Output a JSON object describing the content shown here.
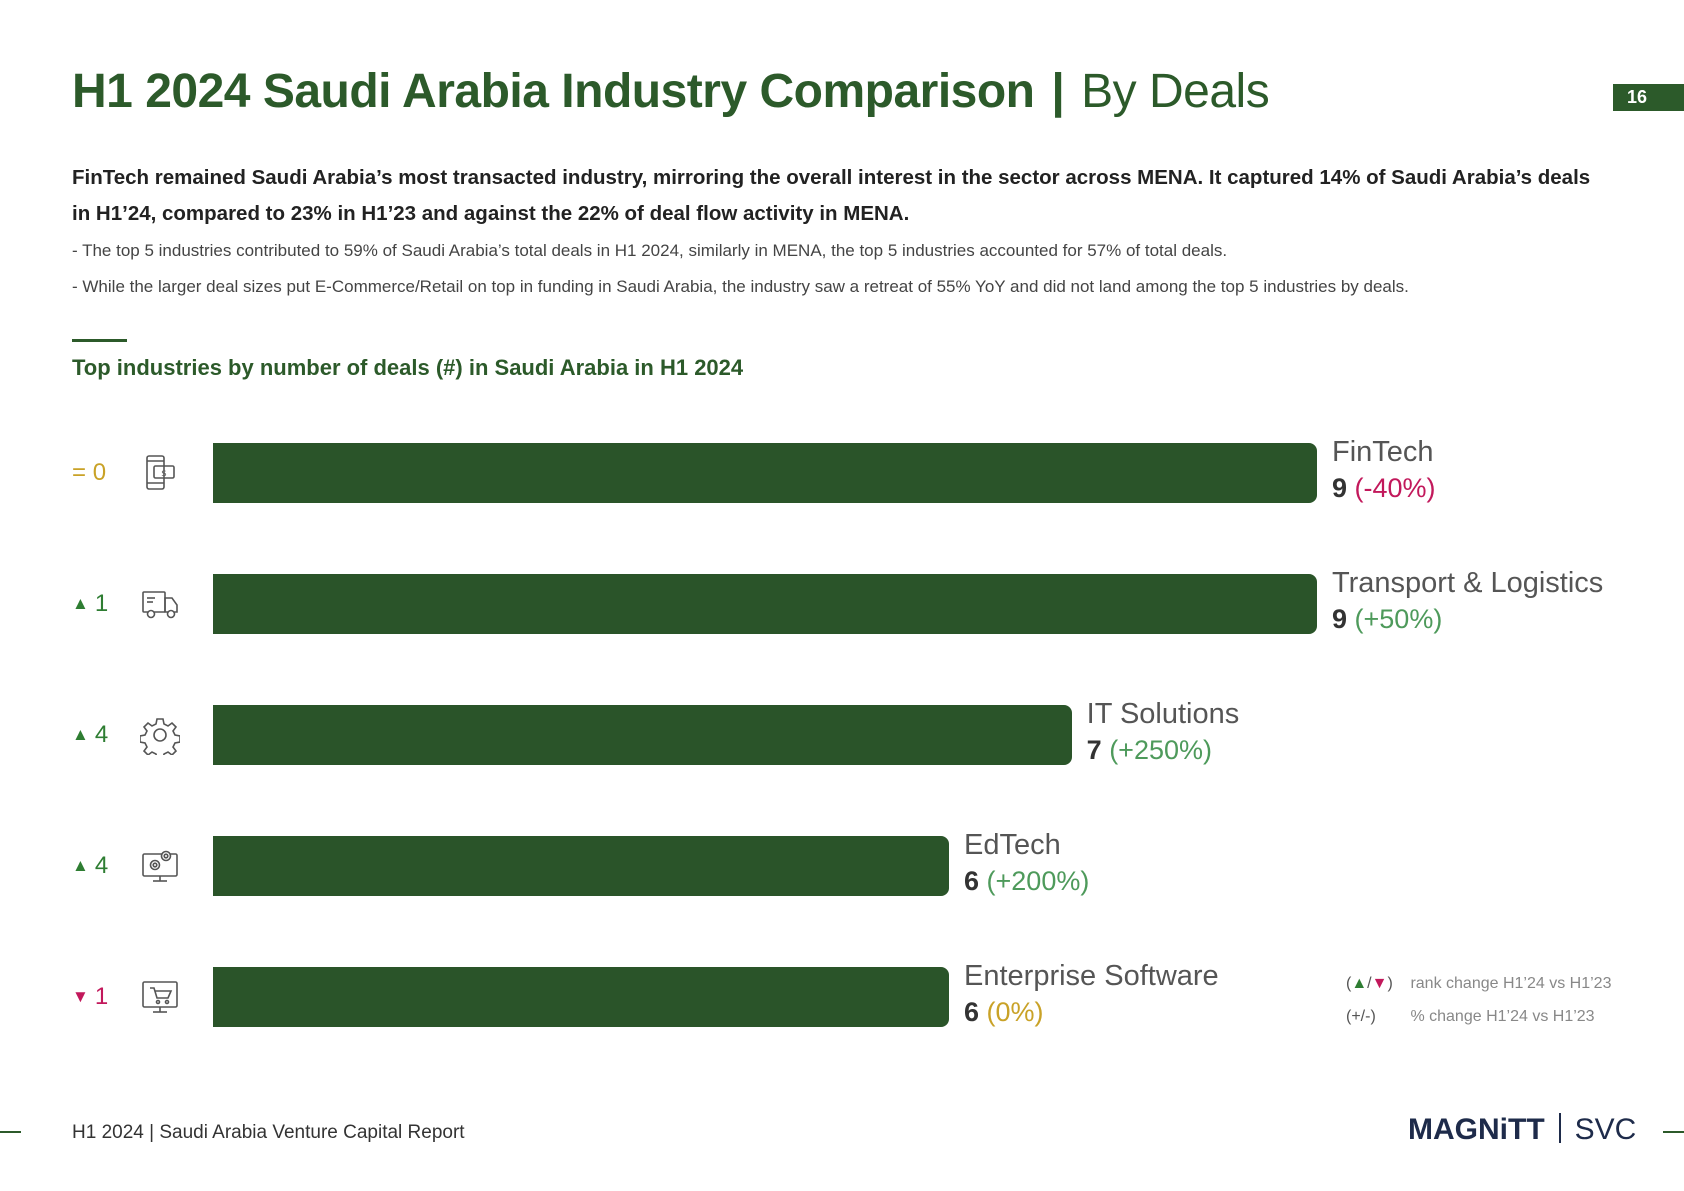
{
  "page": {
    "title_bold": "H1 2024 Saudi Arabia Industry Comparison",
    "title_sep": "|",
    "title_light": "By Deals",
    "page_number": "16",
    "lead": "FinTech remained Saudi Arabia’s most transacted industry, mirroring the overall interest in the sector across MENA. It captured 14% of Saudi Arabia’s deals in H1’24, compared to 23% in H1’23 and against the 22% of deal flow activity in MENA.",
    "notes": [
      "- The top 5 industries contributed to 59% of Saudi Arabia’s total deals in H1 2024, similarly in MENA, the top 5 industries accounted for 57% of total deals.",
      "- While the larger deal sizes put E-Commerce/Retail on top in funding in Saudi Arabia, the industry saw a retreat of 55% YoY and did not land among the top 5 industries by deals."
    ],
    "footer": "H1 2024 | Saudi Arabia Venture Capital Report",
    "logo_left": "MAGNiTT",
    "logo_right": "SVC"
  },
  "colors": {
    "brand_green": "#2c5a2a",
    "bar_green": "#2a5429",
    "rank_up": "#2e7d32",
    "rank_same": "#c9a227",
    "rank_down": "#c2185b",
    "pct_negative": "#c2185b",
    "pct_positive": "#4e9a5b",
    "pct_neutral": "#c9a227"
  },
  "chart_data": {
    "type": "bar",
    "orientation": "horizontal",
    "title": "Top industries by number of deals (#) in Saudi Arabia in H1 2024",
    "categories": [
      "FinTech",
      "Transport & Logistics",
      "IT Solutions",
      "EdTech",
      "Enterprise Software"
    ],
    "values": [
      9,
      9,
      7,
      6,
      6
    ],
    "value_labels": [
      "9",
      "9",
      "7",
      "6",
      "6"
    ],
    "pct_change_labels": [
      "(-40%)",
      "(+50%)",
      "(+250%)",
      "(+200%)",
      "(0%)"
    ],
    "pct_change_direction": [
      "negative",
      "positive",
      "positive",
      "positive",
      "neutral"
    ],
    "rank_change": [
      {
        "symbol": "=",
        "value": "0",
        "direction": "same"
      },
      {
        "symbol": "▲",
        "value": "1",
        "direction": "up"
      },
      {
        "symbol": "▲",
        "value": "4",
        "direction": "up"
      },
      {
        "symbol": "▲",
        "value": "4",
        "direction": "up"
      },
      {
        "symbol": "▼",
        "value": "1",
        "direction": "down"
      }
    ],
    "icons": [
      "mobile-payment-icon",
      "delivery-truck-icon",
      "gear-icon",
      "computer-gears-icon",
      "monitor-cart-icon"
    ],
    "xlim": [
      0,
      9
    ],
    "legend": [
      {
        "symbol_a": "▲",
        "symbol_sep": "/",
        "symbol_b": "▼",
        "text": "rank change H1’24 vs H1’23"
      },
      {
        "symbol_a": "+",
        "symbol_sep": "/",
        "symbol_b": "-",
        "text": "% change H1’24 vs H1’23"
      }
    ],
    "legend_position": "bottom-right"
  }
}
